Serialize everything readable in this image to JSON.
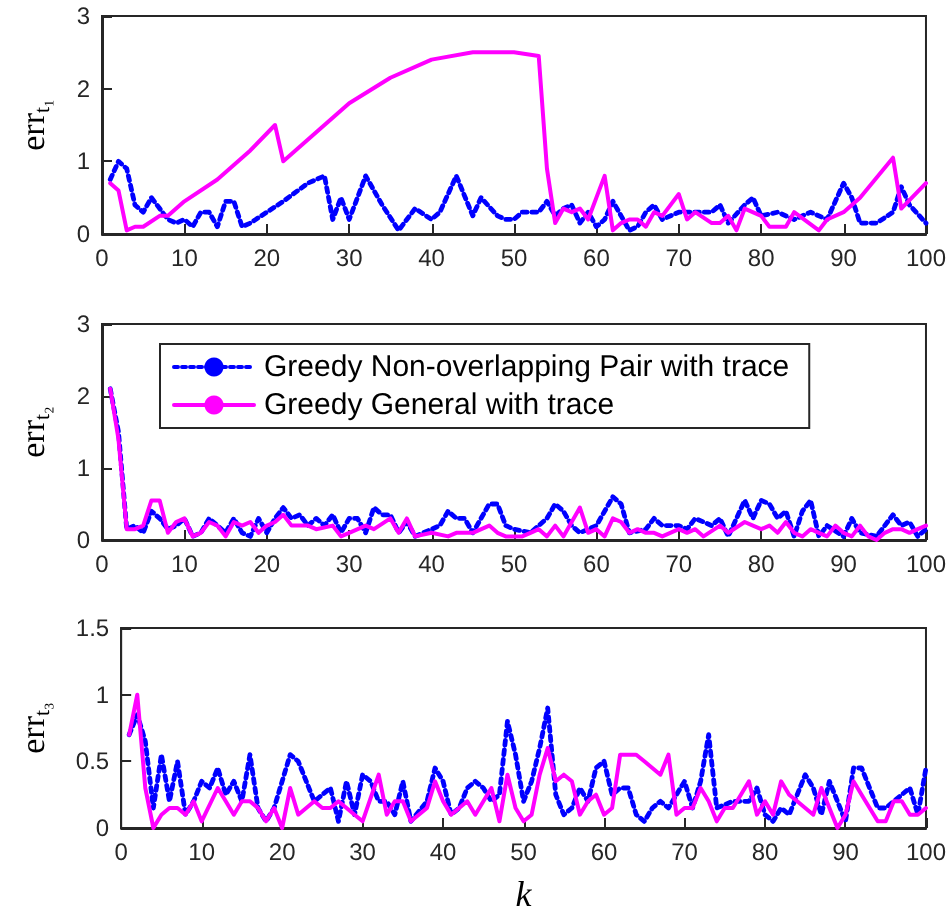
{
  "chart_data": [
    {
      "type": "line",
      "ylabel": "err$_{t₁}$",
      "xlim": [
        0,
        100
      ],
      "xticks": [
        0,
        10,
        20,
        30,
        40,
        50,
        60,
        70,
        80,
        90,
        100
      ],
      "ylim": [
        0,
        3
      ],
      "yticks": [
        0,
        1,
        2,
        3
      ],
      "grid": false,
      "marker": "none",
      "legend": false,
      "series": [
        {
          "color": "#0000ff",
          "line_style": "dotted",
          "x": [
            1,
            2,
            3,
            4,
            5,
            6,
            7,
            8,
            9,
            10,
            11,
            12,
            13,
            14,
            15,
            16,
            17,
            18,
            20,
            22,
            25,
            27,
            28,
            29,
            30,
            32,
            34,
            36,
            38,
            40,
            41,
            43,
            45,
            46,
            48,
            49,
            50,
            51,
            52,
            53,
            54,
            55,
            56,
            57,
            58,
            59,
            60,
            61,
            62,
            63,
            64,
            65,
            66,
            67,
            68,
            70,
            72,
            74,
            75,
            76,
            78,
            79,
            80,
            82,
            84,
            86,
            88,
            90,
            91,
            92,
            94,
            96,
            97,
            98,
            100
          ],
          "values": [
            0.75,
            1.0,
            0.9,
            0.4,
            0.3,
            0.5,
            0.35,
            0.2,
            0.15,
            0.2,
            0.1,
            0.3,
            0.3,
            0.1,
            0.45,
            0.45,
            0.1,
            0.15,
            0.3,
            0.45,
            0.7,
            0.8,
            0.2,
            0.5,
            0.2,
            0.8,
            0.4,
            0.05,
            0.35,
            0.2,
            0.3,
            0.8,
            0.25,
            0.5,
            0.25,
            0.2,
            0.2,
            0.3,
            0.3,
            0.3,
            0.45,
            0.25,
            0.35,
            0.4,
            0.15,
            0.3,
            0.1,
            0.2,
            0.45,
            0.25,
            0.05,
            0.1,
            0.3,
            0.4,
            0.2,
            0.3,
            0.3,
            0.3,
            0.4,
            0.15,
            0.4,
            0.5,
            0.25,
            0.3,
            0.2,
            0.3,
            0.2,
            0.7,
            0.5,
            0.15,
            0.15,
            0.3,
            0.65,
            0.4,
            0.15
          ]
        },
        {
          "color": "#ff00ff",
          "line_style": "solid",
          "x": [
            1,
            2,
            3,
            4,
            5,
            7,
            8,
            10,
            14,
            18,
            21,
            22,
            26,
            30,
            35,
            40,
            45,
            48,
            50,
            53,
            54,
            55,
            56,
            57,
            58,
            59,
            60,
            61,
            62,
            63,
            64,
            65,
            66,
            67,
            68,
            70,
            71,
            72,
            74,
            75,
            76,
            77,
            78,
            80,
            81,
            83,
            84,
            87,
            88,
            90,
            92,
            96,
            97,
            100
          ],
          "values": [
            0.7,
            0.6,
            0.05,
            0.1,
            0.1,
            0.25,
            0.25,
            0.45,
            0.75,
            1.15,
            1.5,
            1.0,
            1.4,
            1.8,
            2.15,
            2.4,
            2.5,
            2.5,
            2.5,
            2.45,
            0.9,
            0.15,
            0.35,
            0.3,
            0.35,
            0.2,
            0.5,
            0.8,
            0.05,
            0.15,
            0.2,
            0.2,
            0.1,
            0.3,
            0.25,
            0.55,
            0.2,
            0.3,
            0.15,
            0.15,
            0.25,
            0.05,
            0.35,
            0.25,
            0.1,
            0.1,
            0.3,
            0.05,
            0.2,
            0.3,
            0.5,
            1.05,
            0.35,
            0.7
          ]
        }
      ]
    },
    {
      "type": "line",
      "ylabel": "err$_{t₂}$",
      "xlim": [
        0,
        100
      ],
      "xticks": [
        0,
        10,
        20,
        30,
        40,
        50,
        60,
        70,
        80,
        90,
        100
      ],
      "ylim": [
        0,
        3
      ],
      "yticks": [
        0,
        1,
        2,
        3
      ],
      "grid": false,
      "marker": "none",
      "legend": "top left",
      "series": [
        {
          "name": "Greedy Non-overlapping Pair with trace",
          "color": "#0000ff",
          "line_style": "dotted",
          "x": [
            1,
            2,
            3,
            4,
            5,
            6,
            7,
            8,
            9,
            10,
            11,
            12,
            13,
            14,
            15,
            16,
            17,
            18,
            19,
            20,
            21,
            22,
            23,
            24,
            25,
            26,
            27,
            28,
            29,
            30,
            31,
            32,
            33,
            34,
            35,
            36,
            37,
            38,
            40,
            41,
            42,
            43,
            44,
            45,
            46,
            47,
            48,
            49,
            50,
            52,
            54,
            55,
            56,
            57,
            58,
            60,
            62,
            63,
            64,
            66,
            67,
            68,
            70,
            71,
            72,
            74,
            75,
            76,
            77,
            78,
            79,
            80,
            81,
            82,
            83,
            84,
            85,
            86,
            87,
            88,
            90,
            91,
            92,
            94,
            96,
            97,
            98,
            99,
            100
          ],
          "values": [
            2.1,
            1.5,
            0.15,
            0.2,
            0.1,
            0.4,
            0.3,
            0.15,
            0.2,
            0.3,
            0.05,
            0.1,
            0.3,
            0.2,
            0.1,
            0.3,
            0.1,
            0.05,
            0.3,
            0.1,
            0.3,
            0.45,
            0.3,
            0.35,
            0.2,
            0.3,
            0.2,
            0.35,
            0.1,
            0.3,
            0.3,
            0.1,
            0.45,
            0.35,
            0.35,
            0.1,
            0.25,
            0.05,
            0.15,
            0.2,
            0.4,
            0.3,
            0.3,
            0.1,
            0.3,
            0.5,
            0.5,
            0.2,
            0.15,
            0.1,
            0.3,
            0.5,
            0.4,
            0.2,
            0.1,
            0.2,
            0.6,
            0.5,
            0.1,
            0.15,
            0.3,
            0.2,
            0.2,
            0.15,
            0.3,
            0.2,
            0.3,
            0.05,
            0.3,
            0.55,
            0.3,
            0.55,
            0.5,
            0.3,
            0.4,
            0.05,
            0.4,
            0.55,
            0.05,
            0.2,
            0.05,
            0.3,
            0.1,
            0.05,
            0.35,
            0.2,
            0.25,
            0.05,
            0.15
          ]
        },
        {
          "name": "Greedy General with trace",
          "color": "#ff00ff",
          "line_style": "solid",
          "x": [
            1,
            2,
            3,
            4,
            5,
            6,
            7,
            8,
            9,
            10,
            11,
            12,
            13,
            14,
            15,
            16,
            17,
            18,
            19,
            20,
            21,
            22,
            23,
            25,
            26,
            28,
            29,
            30,
            32,
            33,
            35,
            36,
            37,
            38,
            40,
            42,
            43,
            45,
            47,
            48,
            49,
            51,
            52,
            53,
            54,
            55,
            56,
            58,
            59,
            60,
            61,
            62,
            63,
            64,
            65,
            66,
            67,
            68,
            70,
            71,
            72,
            73,
            75,
            76,
            78,
            79,
            80,
            81,
            82,
            83,
            84,
            85,
            86,
            87,
            88,
            89,
            90,
            91,
            92,
            93,
            94,
            95,
            96,
            97,
            98,
            99,
            100
          ],
          "values": [
            2.1,
            1.4,
            0.15,
            0.15,
            0.2,
            0.55,
            0.55,
            0.1,
            0.25,
            0.3,
            0.05,
            0.1,
            0.25,
            0.2,
            0.05,
            0.25,
            0.2,
            0.25,
            0.1,
            0.2,
            0.25,
            0.35,
            0.2,
            0.2,
            0.15,
            0.2,
            0.05,
            0.1,
            0.2,
            0.15,
            0.3,
            0.1,
            0.3,
            0.05,
            0.1,
            0.05,
            0.1,
            0.1,
            0.2,
            0.1,
            0.05,
            0.05,
            0.1,
            0.15,
            0.05,
            0.2,
            0.05,
            0.45,
            0.1,
            0.15,
            0.05,
            0.3,
            0.25,
            0.1,
            0.15,
            0.1,
            0.1,
            0.05,
            0.15,
            0.1,
            0.15,
            0.05,
            0.2,
            0.1,
            0.25,
            0.2,
            0.15,
            0.2,
            0.1,
            0.25,
            0.1,
            0.05,
            0.15,
            0.1,
            0.05,
            0.2,
            0.1,
            0.05,
            0.2,
            0.05,
            0,
            0.1,
            0.15,
            0.15,
            0.1,
            0.15,
            0.2
          ]
        }
      ]
    },
    {
      "type": "line",
      "ylabel": "err$_{t₃}$",
      "xlabel": "k",
      "xlim": [
        0,
        100
      ],
      "xticks": [
        0,
        10,
        20,
        30,
        40,
        50,
        60,
        70,
        80,
        90,
        100
      ],
      "ylim": [
        0,
        1.5
      ],
      "yticks": [
        0,
        0.5,
        1,
        1.5
      ],
      "grid": false,
      "marker": "none",
      "legend": false,
      "series": [
        {
          "color": "#0000ff",
          "line_style": "dotted",
          "x": [
            1,
            2,
            3,
            4,
            5,
            6,
            7,
            8,
            9,
            10,
            11,
            12,
            13,
            14,
            15,
            16,
            17,
            18,
            19,
            20,
            21,
            22,
            23,
            24,
            25,
            26,
            27,
            28,
            29,
            30,
            31,
            32,
            33,
            34,
            35,
            36,
            38,
            39,
            40,
            41,
            42,
            43,
            44,
            45,
            46,
            47,
            48,
            49,
            50,
            51,
            52,
            53,
            54,
            55,
            56,
            57,
            58,
            59,
            60,
            61,
            62,
            63,
            64,
            65,
            66,
            67,
            68,
            70,
            71,
            72,
            73,
            74,
            76,
            78,
            79,
            80,
            81,
            82,
            83,
            84,
            85,
            86,
            87,
            88,
            89,
            90,
            91,
            92,
            93,
            94,
            95,
            96,
            98,
            99,
            100
          ],
          "values": [
            0.7,
            0.85,
            0.65,
            0.15,
            0.55,
            0.2,
            0.5,
            0.1,
            0.2,
            0.35,
            0.3,
            0.45,
            0.25,
            0.35,
            0.2,
            0.55,
            0.15,
            0.05,
            0.15,
            0.35,
            0.55,
            0.5,
            0.35,
            0.2,
            0.25,
            0.3,
            0.05,
            0.35,
            0.1,
            0.4,
            0.35,
            0.2,
            0.2,
            0.1,
            0.35,
            0.05,
            0.2,
            0.45,
            0.35,
            0.1,
            0.15,
            0.3,
            0.35,
            0.3,
            0.2,
            0.25,
            0.8,
            0.55,
            0.2,
            0.35,
            0.6,
            0.9,
            0.25,
            0.1,
            0.15,
            0.3,
            0.2,
            0.45,
            0.5,
            0.25,
            0.3,
            0.3,
            0.1,
            0.05,
            0.15,
            0.2,
            0.15,
            0.35,
            0.15,
            0.35,
            0.7,
            0.15,
            0.2,
            0.2,
            0.3,
            0.1,
            0.05,
            0.15,
            0.1,
            0.25,
            0.4,
            0.3,
            0.1,
            0.35,
            0.2,
            0.05,
            0.45,
            0.45,
            0.3,
            0.15,
            0.15,
            0.2,
            0.3,
            0.1,
            0.45
          ]
        },
        {
          "color": "#ff00ff",
          "line_style": "solid",
          "x": [
            1,
            2,
            3,
            4,
            5,
            6,
            7,
            8,
            9,
            10,
            12,
            13,
            14,
            15,
            16,
            17,
            18,
            19,
            20,
            21,
            22,
            24,
            25,
            26,
            27,
            28,
            29,
            30,
            32,
            33,
            34,
            35,
            36,
            38,
            39,
            40,
            41,
            42,
            43,
            44,
            46,
            47,
            48,
            49,
            50,
            51,
            52,
            53,
            54,
            55,
            56,
            57,
            58,
            59,
            60,
            61,
            62,
            63,
            64,
            65,
            66,
            67,
            68,
            69,
            70,
            71,
            72,
            73,
            74,
            75,
            76,
            77,
            78,
            79,
            80,
            81,
            82,
            83,
            84,
            85,
            86,
            87,
            88,
            89,
            90,
            91,
            92,
            93,
            94,
            95,
            96,
            97,
            98,
            99,
            100
          ],
          "values": [
            0.7,
            1.0,
            0.3,
            0,
            0.1,
            0.15,
            0.15,
            0.1,
            0.2,
            0.05,
            0.3,
            0.2,
            0.1,
            0.2,
            0.2,
            0.15,
            0.05,
            0.15,
            0,
            0.3,
            0.1,
            0.2,
            0.15,
            0.15,
            0.2,
            0.15,
            0.1,
            0.05,
            0.4,
            0.1,
            0.2,
            0.2,
            0.05,
            0.15,
            0.35,
            0.2,
            0.1,
            0.15,
            0.2,
            0.1,
            0.3,
            0.05,
            0.4,
            0.15,
            0.05,
            0.1,
            0.4,
            0.6,
            0.35,
            0.4,
            0.35,
            0.1,
            0.2,
            0.25,
            0.1,
            0.15,
            0.55,
            0.55,
            0.55,
            0.5,
            0.45,
            0.4,
            0.55,
            0.1,
            0.15,
            0.15,
            0.3,
            0.2,
            0.05,
            0.15,
            0.15,
            0.25,
            0.35,
            0.1,
            0.2,
            0.1,
            0.35,
            0.25,
            0.2,
            0.15,
            0.1,
            0.3,
            0.15,
            0,
            0.1,
            0.35,
            0.25,
            0.15,
            0.05,
            0.05,
            0.2,
            0.2,
            0.1,
            0.1,
            0.15
          ]
        }
      ]
    }
  ]
}
